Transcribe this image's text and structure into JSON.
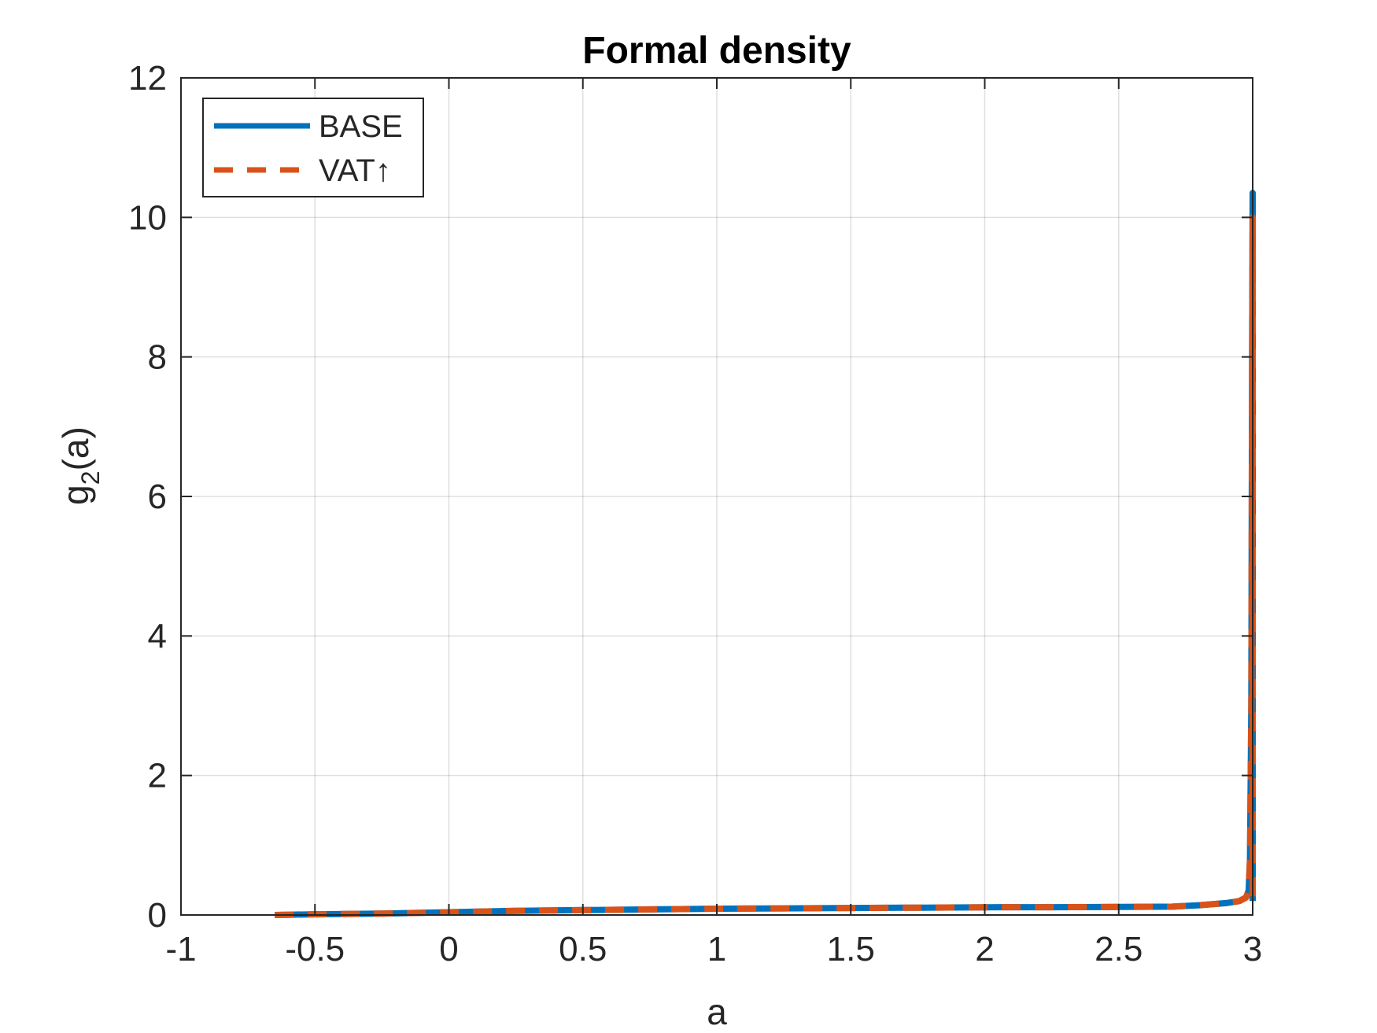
{
  "chart_data": {
    "type": "line",
    "title": "Formal density",
    "xlabel": "a",
    "ylabel": {
      "base": "g",
      "sub": "2",
      "rest": "(a)"
    },
    "xlim": [
      -1,
      3
    ],
    "ylim": [
      0,
      12
    ],
    "xticks": [
      -1,
      -0.5,
      0,
      0.5,
      1,
      1.5,
      2,
      2.5,
      3
    ],
    "xtick_labels": [
      "-1",
      "-0.5",
      "0",
      "0.5",
      "1",
      "1.5",
      "2",
      "2.5",
      "3"
    ],
    "yticks": [
      0,
      2,
      4,
      6,
      8,
      10,
      12
    ],
    "ytick_labels": [
      "0",
      "2",
      "4",
      "6",
      "8",
      "10",
      "12"
    ],
    "grid": true,
    "legend_position": "top-left",
    "series": [
      {
        "name": "BASE",
        "color": "#0072BD",
        "style": "solid",
        "x": [
          -0.65,
          -0.5,
          -0.25,
          0,
          0.25,
          0.5,
          0.75,
          1,
          1.25,
          1.5,
          1.75,
          2,
          2.25,
          2.5,
          2.7,
          2.8,
          2.9,
          2.95,
          2.975,
          2.985,
          2.99,
          2.995,
          2.998,
          3.0,
          3.0
        ],
        "y": [
          0.0,
          0.01,
          0.02,
          0.04,
          0.06,
          0.07,
          0.08,
          0.09,
          0.095,
          0.1,
          0.105,
          0.11,
          0.112,
          0.115,
          0.12,
          0.14,
          0.17,
          0.2,
          0.25,
          0.35,
          0.8,
          3.0,
          8.0,
          10.35,
          0.2
        ]
      },
      {
        "name": "VAT↑",
        "color": "#D95319",
        "style": "dashed",
        "x": [
          -0.65,
          -0.5,
          -0.25,
          0,
          0.25,
          0.5,
          0.75,
          1,
          1.25,
          1.5,
          1.75,
          2,
          2.25,
          2.5,
          2.7,
          2.8,
          2.9,
          2.95,
          2.975,
          2.985,
          2.99,
          2.995,
          2.998,
          3.0,
          3.0
        ],
        "y": [
          0.0,
          0.01,
          0.02,
          0.04,
          0.06,
          0.07,
          0.08,
          0.09,
          0.095,
          0.1,
          0.105,
          0.11,
          0.112,
          0.115,
          0.12,
          0.14,
          0.17,
          0.2,
          0.25,
          0.35,
          0.8,
          3.0,
          8.0,
          10.0,
          0.2
        ]
      }
    ]
  }
}
